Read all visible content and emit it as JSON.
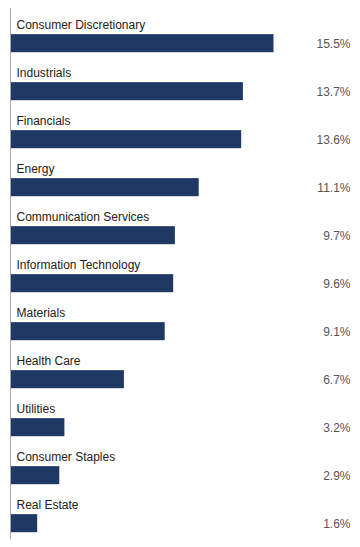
{
  "chart_data": {
    "type": "bar",
    "orientation": "horizontal",
    "categories": [
      "Consumer Discretionary",
      "Industrials",
      "Financials",
      "Energy",
      "Communication Services",
      "Information Technology",
      "Materials",
      "Health Care",
      "Utilities",
      "Consumer Staples",
      "Real Estate"
    ],
    "values": [
      15.5,
      13.7,
      13.6,
      11.1,
      9.7,
      9.6,
      9.1,
      6.7,
      3.2,
      2.9,
      1.6
    ],
    "value_labels": [
      "15.5%",
      "13.7%",
      "13.6%",
      "11.1%",
      "9.7%",
      "9.6%",
      "9.1%",
      "6.7%",
      "3.2%",
      "2.9%",
      "1.6%"
    ],
    "color": "#1f3864",
    "xlim": [
      0,
      20
    ],
    "data_labels": true,
    "tick_labels": false,
    "grid": false
  }
}
